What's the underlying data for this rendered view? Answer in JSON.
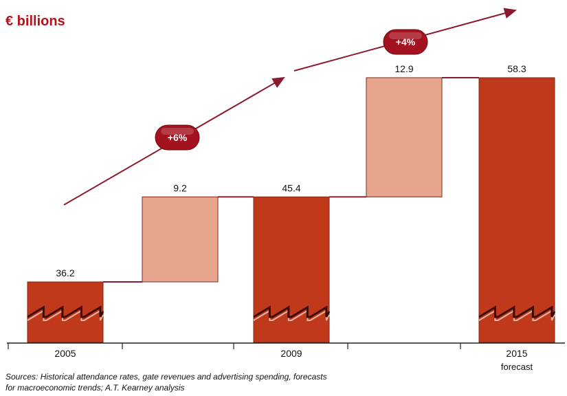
{
  "chart_data": {
    "type": "waterfall",
    "unit_label": "€ billions",
    "bars": [
      {
        "value_label": "36.2",
        "value": 36.2,
        "kind": "total",
        "category": "2005",
        "sub": ""
      },
      {
        "value_label": "9.2",
        "value": 9.2,
        "kind": "increment",
        "category": "",
        "sub": ""
      },
      {
        "value_label": "45.4",
        "value": 45.4,
        "kind": "total",
        "category": "2009",
        "sub": ""
      },
      {
        "value_label": "12.9",
        "value": 12.9,
        "kind": "increment",
        "category": "",
        "sub": ""
      },
      {
        "value_label": "58.3",
        "value": 58.3,
        "kind": "total",
        "category": "2015",
        "sub": "forecast"
      }
    ],
    "growth_annotations": [
      {
        "label": "+6%",
        "from_bar": 0,
        "to_bar": 2
      },
      {
        "label": "+4%",
        "from_bar": 2,
        "to_bar": 4
      }
    ],
    "axis_break": true,
    "colors": {
      "total": "#c0391b",
      "increment": "#e8a58e",
      "connector": "#8b1a2e",
      "arrow": "#8b1a2e",
      "badge": "#a3121e",
      "unit_label": "#b5121b"
    }
  },
  "source_lines": [
    "Sources: Historical attendance rates, gate revenues and advertising spending, forecasts",
    "for macroeconomic trends; A.T. Kearney analysis"
  ]
}
